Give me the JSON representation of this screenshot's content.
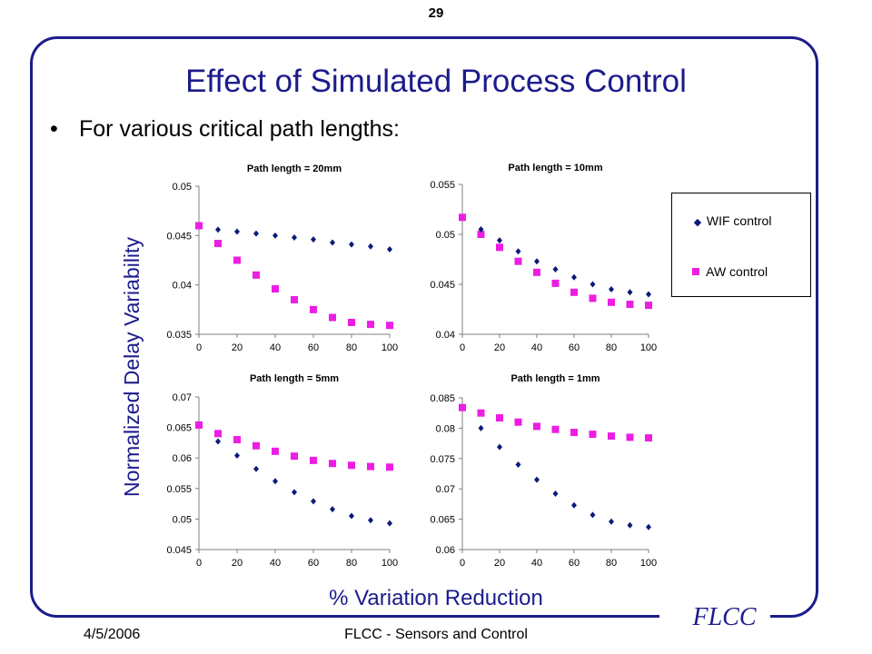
{
  "page_number": "29",
  "title": "Effect of Simulated Process Control",
  "bullet": "For various critical path lengths:",
  "y_axis_label": "Normalized Delay Variability",
  "x_axis_label": "% Variation Reduction",
  "logo": "FLCC",
  "footer": {
    "date": "4/5/2006",
    "center": "FLCC - Sensors and Control"
  },
  "legend": {
    "wif": "WIF control",
    "aw": "AW control"
  },
  "colors": {
    "wif": "#0b1a7a",
    "aw": "#ec1ee3",
    "title": "#1c1c8c"
  },
  "chart_data": [
    {
      "type": "scatter",
      "title": "Path length = 20mm",
      "x_ticks": [
        "0",
        "20",
        "40",
        "60",
        "80",
        "100"
      ],
      "y_ticks": [
        "0.035",
        "0.04",
        "0.045",
        "0.05"
      ],
      "xlim": [
        0,
        100
      ],
      "ylim": [
        0.035,
        0.05
      ],
      "x": [
        0,
        10,
        20,
        30,
        40,
        50,
        60,
        70,
        80,
        90,
        100
      ],
      "series": [
        {
          "name": "WIF control",
          "values": [
            null,
            0.0456,
            0.0454,
            0.0452,
            0.045,
            0.0448,
            0.0446,
            0.0443,
            0.0441,
            0.0439,
            0.0436
          ]
        },
        {
          "name": "AW control",
          "values": [
            0.046,
            0.0442,
            0.0425,
            0.041,
            0.0396,
            0.0385,
            0.0375,
            0.0367,
            0.0362,
            0.036,
            0.0359
          ]
        }
      ]
    },
    {
      "type": "scatter",
      "title": "Path length = 10mm",
      "x_ticks": [
        "0",
        "20",
        "40",
        "60",
        "80",
        "100"
      ],
      "y_ticks": [
        "0.04",
        "0.045",
        "0.05",
        "0.055"
      ],
      "xlim": [
        0,
        100
      ],
      "ylim": [
        0.04,
        0.055
      ],
      "x": [
        0,
        10,
        20,
        30,
        40,
        50,
        60,
        70,
        80,
        90,
        100
      ],
      "series": [
        {
          "name": "WIF control",
          "values": [
            null,
            0.0505,
            0.0494,
            0.0483,
            0.0473,
            0.0465,
            0.0457,
            0.045,
            0.0445,
            0.0442,
            0.044
          ]
        },
        {
          "name": "AW control",
          "values": [
            0.0517,
            0.05,
            0.0487,
            0.0473,
            0.0462,
            0.0451,
            0.0442,
            0.0436,
            0.0432,
            0.043,
            0.0429
          ]
        }
      ]
    },
    {
      "type": "scatter",
      "title": "Path length = 5mm",
      "x_ticks": [
        "0",
        "20",
        "40",
        "60",
        "80",
        "100"
      ],
      "y_ticks": [
        "0.045",
        "0.05",
        "0.055",
        "0.06",
        "0.065",
        "0.07"
      ],
      "xlim": [
        0,
        100
      ],
      "ylim": [
        0.045,
        0.07
      ],
      "x": [
        0,
        10,
        20,
        30,
        40,
        50,
        60,
        70,
        80,
        90,
        100
      ],
      "series": [
        {
          "name": "WIF control",
          "values": [
            null,
            0.0627,
            0.0604,
            0.0582,
            0.0562,
            0.0544,
            0.0529,
            0.0516,
            0.0505,
            0.0498,
            0.0493
          ]
        },
        {
          "name": "AW control",
          "values": [
            0.0654,
            0.064,
            0.063,
            0.062,
            0.0611,
            0.0603,
            0.0596,
            0.0591,
            0.0588,
            0.0586,
            0.0585
          ]
        }
      ]
    },
    {
      "type": "scatter",
      "title": "Path length = 1mm",
      "x_ticks": [
        "0",
        "20",
        "40",
        "60",
        "80",
        "100"
      ],
      "y_ticks": [
        "0.06",
        "0.065",
        "0.07",
        "0.075",
        "0.08",
        "0.085"
      ],
      "xlim": [
        0,
        100
      ],
      "ylim": [
        0.06,
        0.085
      ],
      "x": [
        0,
        10,
        20,
        30,
        40,
        50,
        60,
        70,
        80,
        90,
        100
      ],
      "series": [
        {
          "name": "WIF control",
          "values": [
            null,
            0.08,
            0.0769,
            0.074,
            0.0715,
            0.0692,
            0.0673,
            0.0657,
            0.0646,
            0.064,
            0.0637
          ]
        },
        {
          "name": "AW control",
          "values": [
            0.0834,
            0.0825,
            0.0817,
            0.081,
            0.0803,
            0.0798,
            0.0793,
            0.079,
            0.0787,
            0.0785,
            0.0784
          ]
        }
      ]
    }
  ]
}
